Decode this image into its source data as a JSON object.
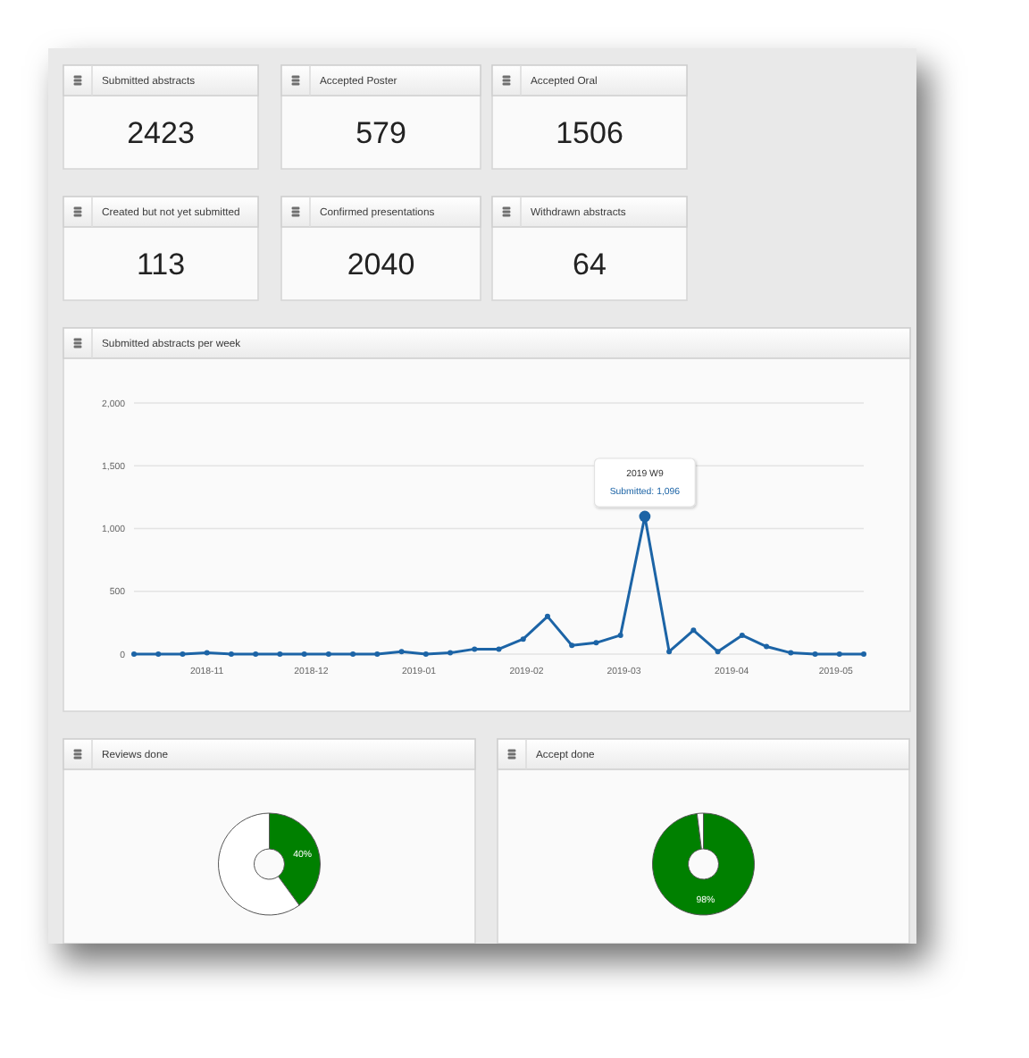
{
  "chart_data": [
    {
      "type": "other",
      "title": "Submitted abstracts",
      "annotations": [
        "2423"
      ]
    },
    {
      "type": "other",
      "title": "Accepted Poster",
      "annotations": [
        "579"
      ]
    },
    {
      "type": "other",
      "title": "Accepted Oral",
      "annotations": [
        "1506"
      ]
    },
    {
      "type": "other",
      "title": "Created but not yet submitted",
      "annotations": [
        "113"
      ]
    },
    {
      "type": "other",
      "title": "Confirmed presentations",
      "annotations": [
        "2040"
      ]
    },
    {
      "type": "other",
      "title": "Withdrawn abstracts",
      "annotations": [
        "64"
      ]
    },
    {
      "type": "line",
      "title": "Submitted abstracts per week",
      "x": [
        "2018-10-11",
        "2018-10-18",
        "2018-10-25",
        "2018-11-01",
        "2018-11-08",
        "2018-11-15",
        "2018-11-22",
        "2018-11-29",
        "2018-12-06",
        "2018-12-13",
        "2018-12-20",
        "2018-12-27",
        "2019-01-03",
        "2019-01-10",
        "2019-01-17",
        "2019-01-24",
        "2019-01-31",
        "2019-02-07",
        "2019-02-14",
        "2019-02-21",
        "2019-02-28",
        "2019-03-07",
        "2019-03-14",
        "2019-03-21",
        "2019-03-28",
        "2019-04-04",
        "2019-04-11",
        "2019-04-18",
        "2019-04-25",
        "2019-05-02",
        "2019-05-09"
      ],
      "values": [
        0,
        0,
        0,
        10,
        0,
        0,
        0,
        0,
        0,
        0,
        0,
        20,
        0,
        10,
        40,
        40,
        120,
        300,
        70,
        90,
        150,
        1096,
        20,
        190,
        20,
        150,
        60,
        10,
        0,
        0,
        0
      ],
      "color": "#1c64a6",
      "xlim": [
        "2018-10-11",
        "2019-05-09"
      ],
      "xticks": [
        {
          "value": "2018-11-01",
          "label": "2018-11"
        },
        {
          "value": "2018-12-01",
          "label": "2018-12"
        },
        {
          "value": "2019-01-01",
          "label": "2019-01"
        },
        {
          "value": "2019-02-01",
          "label": "2019-02"
        },
        {
          "value": "2019-03-01",
          "label": "2019-03"
        },
        {
          "value": "2019-04-01",
          "label": "2019-04"
        },
        {
          "value": "2019-05-01",
          "label": "2019-05"
        }
      ],
      "ylim": [
        0,
        2000
      ],
      "yticks": [
        0,
        500,
        {
          "value": 1000,
          "label": "1,000"
        },
        {
          "value": 1500,
          "label": "1,500"
        },
        {
          "value": 2000,
          "label": "2,000"
        }
      ],
      "grid": "y",
      "marker": "circle",
      "annotations": [
        "2019 W9",
        {
          "text": "Submitted: 1,096",
          "x": "2019-03-07",
          "y": 1096
        }
      ]
    },
    {
      "type": "donut",
      "title": "Reviews done",
      "categories": [
        null,
        null
      ],
      "values": [
        40,
        60
      ],
      "colors": [
        "#008000",
        "#ffffff"
      ],
      "value_labels": [
        "40%",
        null
      ]
    },
    {
      "type": "donut",
      "title": "Accept done",
      "categories": [
        null,
        null
      ],
      "values": [
        98,
        2
      ],
      "colors": [
        "#008000",
        "#ffffff"
      ],
      "value_labels": [
        "98%",
        null
      ]
    }
  ]
}
